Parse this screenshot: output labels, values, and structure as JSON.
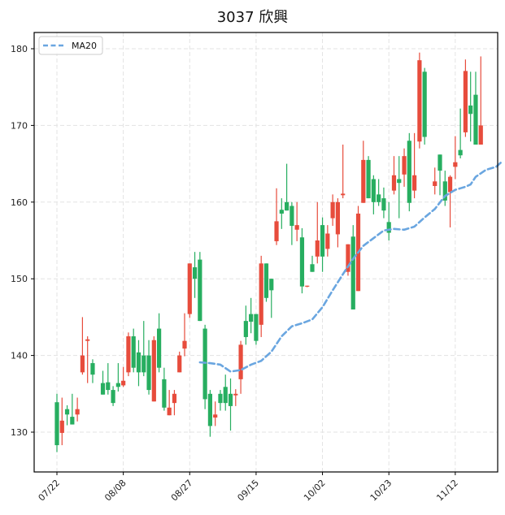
{
  "chart_data": {
    "type": "candlestick",
    "title": "3037 欣興",
    "xlabel": "",
    "ylabel": "",
    "ylim": [
      124.8,
      182.1
    ],
    "yticks": [
      130,
      140,
      150,
      160,
      170,
      180
    ],
    "xtick_labels": [
      {
        "slot": 0,
        "label": "07/22"
      },
      {
        "slot": 13,
        "label": "08/08"
      },
      {
        "slot": 26,
        "label": "08/27"
      },
      {
        "slot": 39,
        "label": "09/15"
      },
      {
        "slot": 52,
        "label": "10/02"
      },
      {
        "slot": 65,
        "label": "10/23"
      },
      {
        "slot": 78,
        "label": "11/12"
      }
    ],
    "grid": true,
    "legend": {
      "position": "upper left",
      "entries": [
        "MA20"
      ]
    },
    "colors": {
      "up": "#e74c3c",
      "down": "#27ae60",
      "ma20": "#6aa6e0"
    },
    "candles_columns": [
      "slot",
      "open",
      "high",
      "low",
      "close"
    ],
    "candles": [
      [
        0,
        133.9,
        135.0,
        127.4,
        128.3
      ],
      [
        1,
        129.9,
        134.5,
        128.3,
        131.5
      ],
      [
        2,
        133.0,
        133.5,
        130.9,
        132.3
      ],
      [
        3,
        132.0,
        135.0,
        131.0,
        131.0
      ],
      [
        4,
        132.3,
        134.5,
        131.4,
        133.0
      ],
      [
        5,
        137.8,
        145.0,
        137.5,
        140.0
      ],
      [
        6,
        141.9,
        142.5,
        136.4,
        142.1
      ],
      [
        7,
        139.0,
        139.5,
        136.4,
        137.5
      ],
      [
        9,
        136.4,
        138.0,
        134.9,
        134.9
      ],
      [
        10,
        136.5,
        139.0,
        134.9,
        135.5
      ],
      [
        11,
        135.5,
        136.0,
        133.4,
        133.8
      ],
      [
        12,
        136.4,
        139.0,
        135.3,
        135.9
      ],
      [
        13,
        136.1,
        138.5,
        135.9,
        136.7
      ],
      [
        14,
        137.8,
        143.0,
        137.3,
        142.5
      ],
      [
        15,
        142.5,
        143.5,
        137.8,
        138.4
      ],
      [
        16,
        140.4,
        142.0,
        136.0,
        137.8
      ],
      [
        17,
        140.0,
        144.5,
        137.3,
        137.8
      ],
      [
        18,
        140.0,
        142.0,
        134.9,
        135.5
      ],
      [
        19,
        134.0,
        142.5,
        134.0,
        142.0
      ],
      [
        20,
        143.5,
        145.5,
        137.8,
        138.4
      ],
      [
        21,
        136.9,
        138.4,
        132.8,
        133.2
      ],
      [
        22,
        132.2,
        135.5,
        132.2,
        133.2
      ],
      [
        23,
        133.8,
        135.5,
        132.2,
        135.0
      ],
      [
        24,
        137.8,
        140.5,
        137.8,
        140.0
      ],
      [
        25,
        140.9,
        145.5,
        139.9,
        141.9
      ],
      [
        26,
        145.4,
        152.0,
        144.9,
        152.0
      ],
      [
        27,
        151.5,
        153.5,
        147.5,
        150.0
      ],
      [
        28,
        152.5,
        153.5,
        144.5,
        144.5
      ],
      [
        29,
        143.5,
        144.0,
        133.0,
        134.3
      ],
      [
        30,
        135.0,
        135.5,
        129.4,
        130.8
      ],
      [
        31,
        131.9,
        134.0,
        130.8,
        132.3
      ],
      [
        32,
        135.0,
        135.5,
        132.8,
        133.8
      ],
      [
        33,
        135.9,
        137.5,
        132.8,
        133.8
      ],
      [
        34,
        135.0,
        137.0,
        130.2,
        133.4
      ],
      [
        35,
        134.8,
        135.6,
        133.4,
        135.0
      ],
      [
        36,
        136.9,
        141.9,
        135.0,
        141.4
      ],
      [
        37,
        144.5,
        146.5,
        141.4,
        142.4
      ],
      [
        38,
        145.4,
        147.5,
        142.9,
        144.4
      ],
      [
        39,
        145.4,
        145.4,
        141.4,
        141.9
      ],
      [
        40,
        144.0,
        153.0,
        142.4,
        152.0
      ],
      [
        41,
        152.0,
        152.0,
        147.0,
        147.5
      ],
      [
        42,
        150.0,
        150.0,
        144.9,
        148.5
      ],
      [
        43,
        154.9,
        161.8,
        154.4,
        157.5
      ],
      [
        44,
        159.0,
        160.5,
        156.5,
        158.5
      ],
      [
        45,
        160.0,
        165.0,
        158.9,
        158.9
      ],
      [
        46,
        159.5,
        160.0,
        154.4,
        156.9
      ],
      [
        47,
        156.4,
        160.0,
        154.9,
        157.0
      ],
      [
        48,
        155.4,
        156.6,
        148.1,
        149.0
      ],
      [
        49,
        149.0,
        149.1,
        148.9,
        149.1
      ],
      [
        50,
        151.9,
        153.0,
        150.9,
        150.9
      ],
      [
        51,
        152.9,
        160.0,
        152.0,
        155.0
      ],
      [
        52,
        157.0,
        158.0,
        150.9,
        152.9
      ],
      [
        53,
        153.9,
        157.0,
        152.9,
        155.9
      ],
      [
        54,
        157.9,
        161.0,
        156.9,
        160.0
      ],
      [
        55,
        155.8,
        160.5,
        154.1,
        160.0
      ],
      [
        56,
        160.9,
        167.5,
        160.5,
        161.1
      ],
      [
        57,
        150.9,
        154.5,
        150.4,
        154.5
      ],
      [
        58,
        155.5,
        157.0,
        146.0,
        146.0
      ],
      [
        59,
        148.4,
        159.5,
        148.4,
        158.5
      ],
      [
        60,
        159.9,
        168.0,
        159.9,
        165.5
      ],
      [
        61,
        165.5,
        166.0,
        160.5,
        160.5
      ],
      [
        62,
        163.0,
        163.5,
        158.4,
        160.0
      ],
      [
        63,
        161.0,
        163.0,
        159.5,
        160.0
      ],
      [
        64,
        160.5,
        161.9,
        157.9,
        158.9
      ],
      [
        65,
        157.4,
        160.0,
        155.0,
        156.0
      ],
      [
        66,
        161.5,
        166.0,
        161.0,
        163.5
      ],
      [
        67,
        163.0,
        166.0,
        157.9,
        162.5
      ],
      [
        68,
        163.6,
        167.0,
        162.0,
        166.0
      ],
      [
        69,
        168.0,
        169.0,
        158.8,
        159.9
      ],
      [
        70,
        161.5,
        169.0,
        160.5,
        163.5
      ],
      [
        71,
        167.9,
        179.5,
        167.0,
        178.5
      ],
      [
        72,
        177.0,
        177.5,
        167.5,
        168.5
      ],
      [
        74,
        162.1,
        164.5,
        161.0,
        162.7
      ],
      [
        75,
        166.2,
        166.2,
        160.9,
        164.1
      ],
      [
        76,
        162.7,
        164.1,
        159.5,
        160.2
      ],
      [
        77,
        161.3,
        163.5,
        156.7,
        163.3
      ],
      [
        78,
        164.6,
        168.6,
        163.0,
        165.2
      ],
      [
        79,
        166.8,
        172.2,
        165.7,
        166.1
      ],
      [
        80,
        169.1,
        178.6,
        168.5,
        177.1
      ],
      [
        81,
        172.6,
        177.0,
        167.9,
        171.5
      ],
      [
        82,
        174.0,
        177.0,
        167.5,
        167.5
      ],
      [
        83,
        167.5,
        179.0,
        167.5,
        170.0
      ]
    ],
    "ma20": {
      "name": "MA20",
      "start_slot": 28,
      "points": [
        [
          28,
          139.1
        ],
        [
          30,
          139.0
        ],
        [
          32,
          138.8
        ],
        [
          34,
          137.9
        ],
        [
          36,
          138.1
        ],
        [
          38,
          138.8
        ],
        [
          40,
          139.3
        ],
        [
          42,
          140.5
        ],
        [
          44,
          142.5
        ],
        [
          46,
          143.8
        ],
        [
          48,
          144.2
        ],
        [
          50,
          144.7
        ],
        [
          52,
          146.3
        ],
        [
          54,
          148.5
        ],
        [
          56,
          150.6
        ],
        [
          58,
          152.6
        ],
        [
          60,
          154.3
        ],
        [
          62,
          155.3
        ],
        [
          64,
          156.3
        ],
        [
          66,
          156.5
        ],
        [
          68,
          156.4
        ],
        [
          70,
          156.8
        ],
        [
          72,
          158.0
        ],
        [
          74,
          159.1
        ],
        [
          76,
          160.8
        ],
        [
          78,
          161.6
        ],
        [
          79,
          161.8
        ],
        [
          80,
          162.0
        ],
        [
          81,
          162.3
        ],
        [
          82,
          163.3
        ],
        [
          84,
          164.2
        ],
        [
          86,
          164.6
        ],
        [
          87,
          165.2
        ]
      ]
    }
  }
}
